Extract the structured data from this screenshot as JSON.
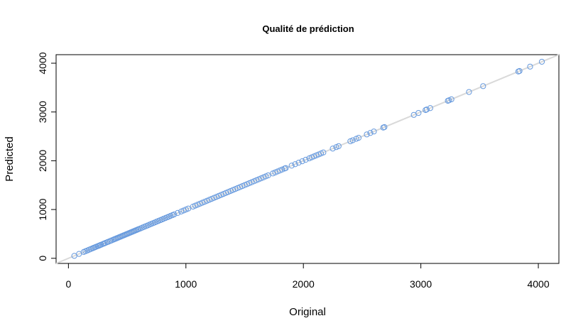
{
  "chart_data": {
    "type": "scatter",
    "title": "Qualité de prédiction",
    "xlabel": "Original",
    "ylabel": "Predicted",
    "xlim": [
      -105,
      4175
    ],
    "ylim": [
      -105,
      4175
    ],
    "x_ticks": [
      0,
      1000,
      2000,
      3000,
      4000
    ],
    "y_ticks": [
      0,
      1000,
      2000,
      3000,
      4000
    ],
    "x_tick_labels": [
      "0",
      "1000",
      "2000",
      "3000",
      "4000"
    ],
    "y_tick_labels": [
      "0",
      "1000",
      "2000",
      "3000",
      "4000"
    ],
    "reference_line": {
      "slope": 1,
      "intercept": 0,
      "color": "#d9d9d9"
    },
    "point_color": "#6699dd",
    "grid": false,
    "legend": "none",
    "series": [
      {
        "x": [
          50,
          90,
          130,
          145,
          160,
          175,
          190,
          205,
          215,
          225,
          235,
          250,
          260,
          270,
          280,
          295,
          305,
          315,
          330,
          340,
          355,
          365,
          380,
          390,
          400,
          410,
          420,
          430,
          440,
          450,
          460,
          470,
          480,
          490,
          500,
          510,
          520,
          530,
          540,
          550,
          560,
          570,
          580,
          590,
          600,
          615,
          630,
          645,
          660,
          675,
          690,
          705,
          720,
          735,
          750,
          765,
          780,
          795,
          810,
          825,
          840,
          855,
          870,
          885,
          900,
          930,
          960,
          980,
          1000,
          1020,
          1060,
          1080,
          1100,
          1120,
          1140,
          1160,
          1180,
          1200,
          1220,
          1240,
          1260,
          1280,
          1300,
          1320,
          1340,
          1360,
          1380,
          1400,
          1420,
          1440,
          1460,
          1480,
          1500,
          1520,
          1540,
          1560,
          1580,
          1600,
          1620,
          1640,
          1660,
          1680,
          1700,
          1740,
          1760,
          1780,
          1800,
          1820,
          1840,
          1850,
          1900,
          1930,
          1960,
          1990,
          2020,
          2050,
          2070,
          2090,
          2110,
          2130,
          2150,
          2170,
          2250,
          2280,
          2300,
          2400,
          2420,
          2450,
          2470,
          2540,
          2570,
          2600,
          2680,
          2690,
          2940,
          2980,
          3040,
          3050,
          3080,
          3230,
          3240,
          3260,
          3410,
          3530,
          3830,
          3840,
          3930,
          4030
        ],
        "y": [
          50,
          90,
          130,
          145,
          160,
          175,
          190,
          205,
          215,
          225,
          235,
          250,
          260,
          270,
          280,
          295,
          305,
          315,
          330,
          340,
          355,
          365,
          380,
          390,
          400,
          410,
          420,
          430,
          440,
          450,
          460,
          470,
          480,
          490,
          500,
          510,
          520,
          530,
          540,
          550,
          560,
          570,
          580,
          590,
          600,
          615,
          630,
          645,
          660,
          675,
          690,
          705,
          720,
          735,
          750,
          765,
          780,
          795,
          810,
          825,
          840,
          855,
          870,
          885,
          900,
          930,
          960,
          980,
          1000,
          1020,
          1060,
          1080,
          1100,
          1120,
          1140,
          1160,
          1180,
          1200,
          1220,
          1240,
          1260,
          1280,
          1300,
          1320,
          1340,
          1360,
          1380,
          1400,
          1420,
          1440,
          1460,
          1480,
          1500,
          1520,
          1540,
          1560,
          1580,
          1600,
          1620,
          1640,
          1660,
          1680,
          1700,
          1740,
          1760,
          1780,
          1800,
          1820,
          1840,
          1850,
          1900,
          1930,
          1960,
          1990,
          2020,
          2050,
          2070,
          2090,
          2110,
          2130,
          2150,
          2170,
          2250,
          2280,
          2300,
          2400,
          2420,
          2450,
          2470,
          2540,
          2570,
          2600,
          2680,
          2690,
          2940,
          2980,
          3040,
          3050,
          3080,
          3230,
          3240,
          3260,
          3410,
          3530,
          3830,
          3840,
          3930,
          4030
        ]
      }
    ]
  }
}
